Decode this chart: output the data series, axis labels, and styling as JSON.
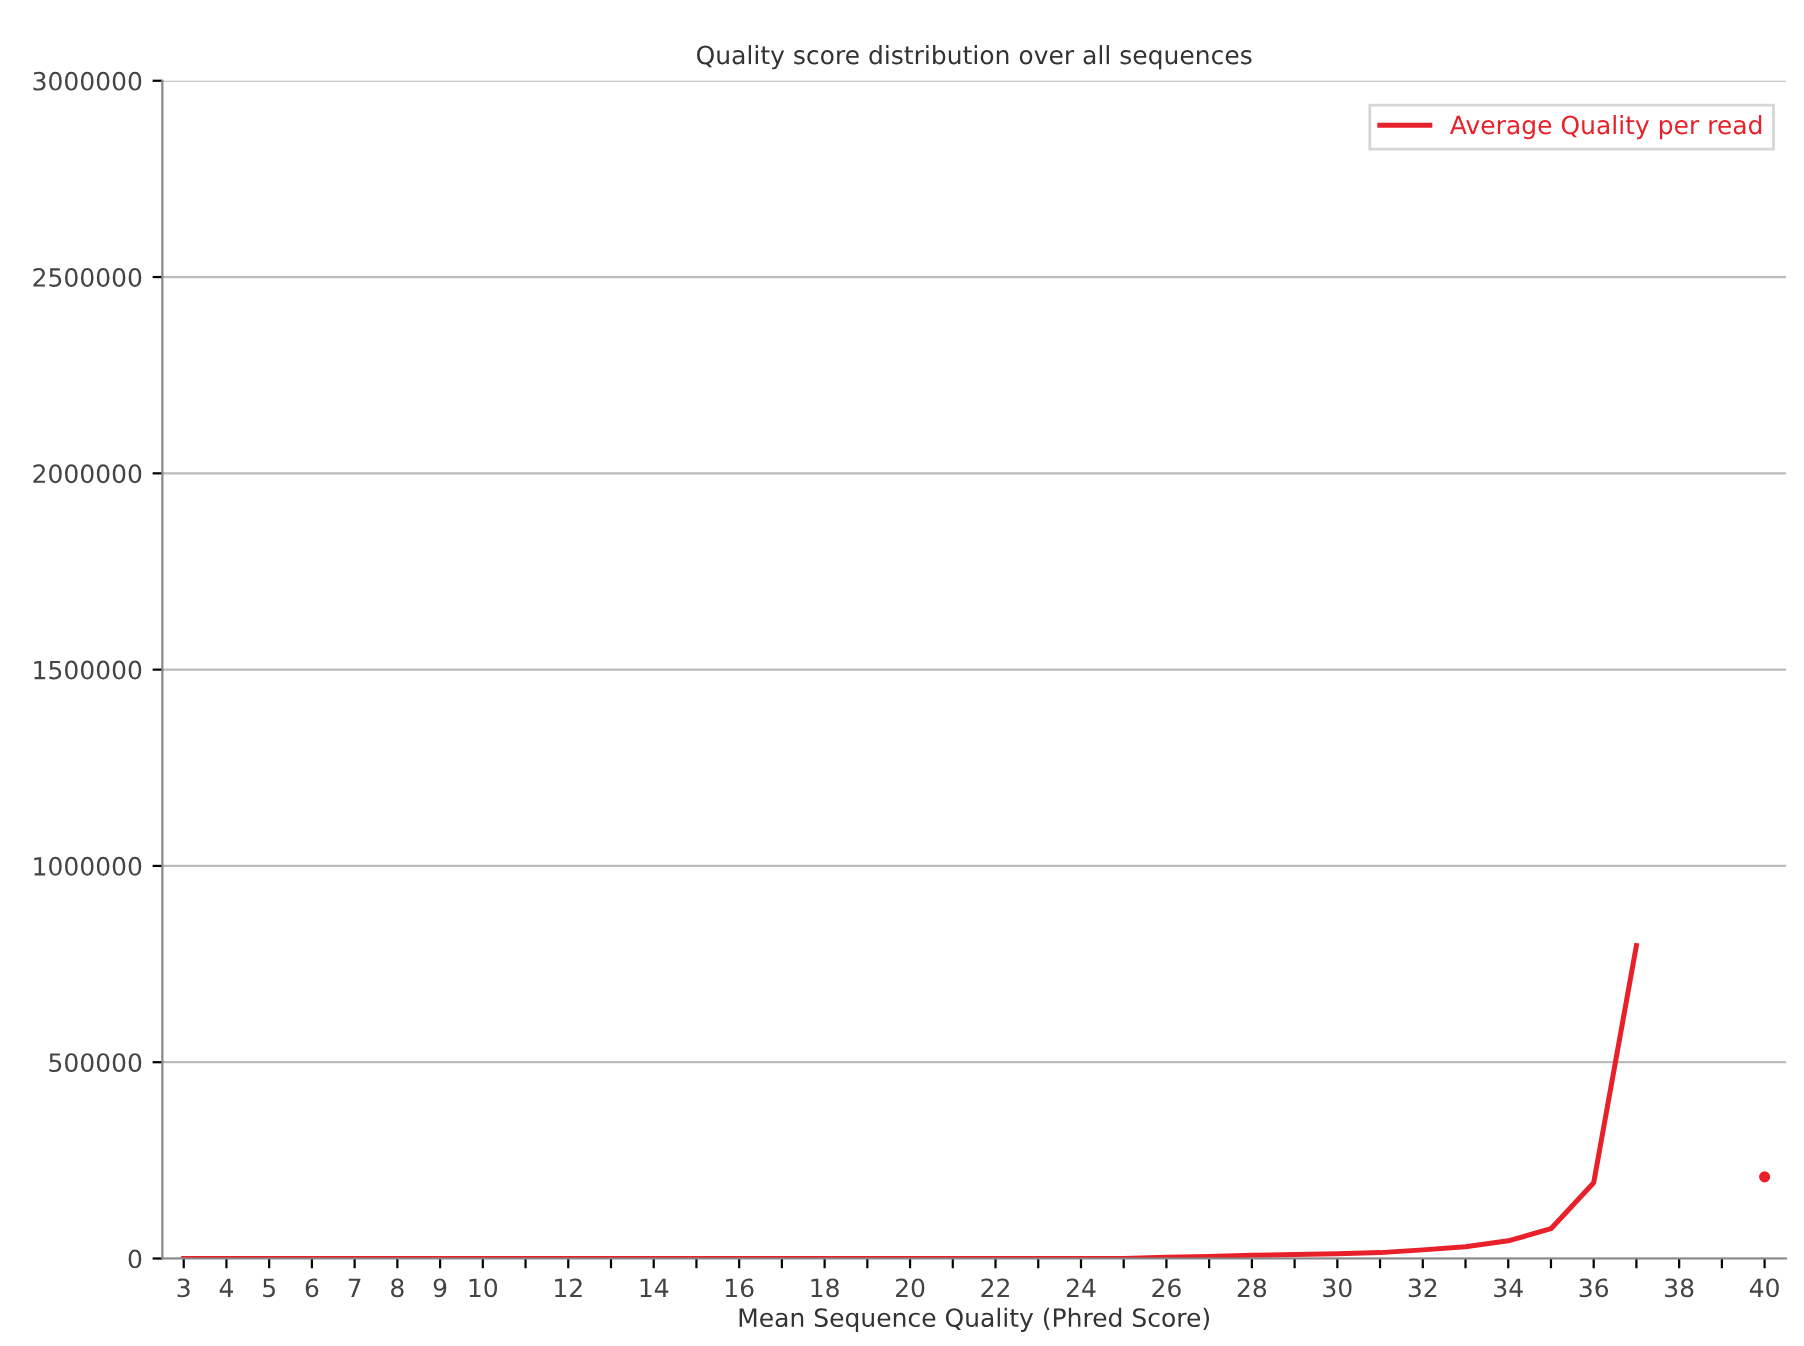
{
  "chart_data": {
    "type": "line",
    "title": "Quality score distribution over all sequences",
    "xlabel": "Mean Sequence Quality (Phred Score)",
    "categories": [
      "3",
      "4",
      "5",
      "6",
      "7",
      "8",
      "9",
      "10",
      null,
      "12",
      null,
      "14",
      null,
      "16",
      null,
      "18",
      null,
      "20",
      null,
      "22",
      null,
      "24",
      null,
      "26",
      null,
      "28",
      null,
      "30",
      null,
      "32",
      null,
      "34",
      null,
      "36",
      null,
      "38",
      null,
      "40"
    ],
    "series": [
      {
        "name": "Average Quality per read",
        "color": "#e8202a",
        "values": [
          0,
          0,
          0,
          0,
          0,
          0,
          0,
          0,
          0,
          0,
          0,
          0,
          0,
          0,
          0,
          0,
          0,
          0,
          0,
          0,
          0,
          0,
          0,
          3000,
          5000,
          8000,
          10000,
          12000,
          15000,
          22000,
          30000,
          45000,
          76000,
          193000,
          797000,
          null,
          null,
          208000
        ]
      }
    ],
    "ylim": [
      0,
      3000000
    ],
    "yticks": [
      0,
      500000,
      1000000,
      1500000,
      2000000,
      2500000,
      3000000
    ],
    "grid": "y",
    "legend": "top right",
    "marker": "none",
    "line_style": "solid"
  }
}
